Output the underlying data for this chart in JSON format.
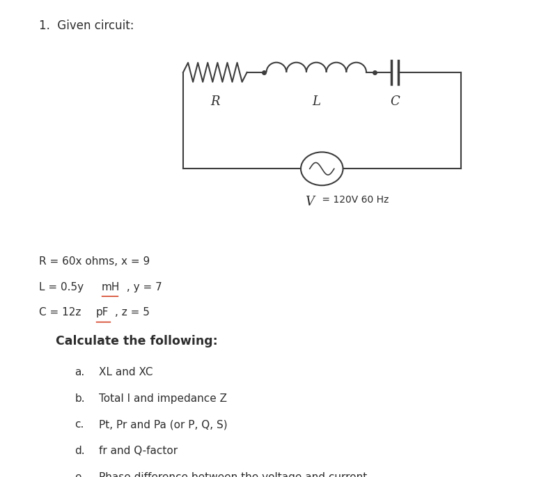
{
  "title": "1.  Given circuit:",
  "background_color": "#ffffff",
  "circuit": {
    "R_label": "R",
    "L_label": "L",
    "C_label": "C",
    "V_label": "V",
    "V_sublabel": " = 120V 60 Hz"
  },
  "param_R": "R = 60x ohms, x = 9",
  "param_L_pre": "L = 0.5y ",
  "param_L_under": "mH",
  "param_L_post": " , y = 7",
  "param_C_pre": "C = 12z ",
  "param_C_under": "pF",
  "param_C_post": ", z = 5",
  "calc_header": "Calculate the following:",
  "items": [
    [
      "a.",
      "XL and XC"
    ],
    [
      "b.",
      "Total I and impedance Z"
    ],
    [
      "c.",
      "Pt, Pr and Pa (or P, Q, S)"
    ],
    [
      "d.",
      "fr and Q-factor"
    ],
    [
      "e.",
      "Phase difference between the voltage and current."
    ]
  ],
  "text_color": "#2d2d2d",
  "line_color": "#3d3d3d",
  "underline_color": "#cc2200",
  "font_size_title": 12,
  "font_size_body": 11,
  "font_size_calc": 12.5,
  "font_size_label": 13
}
